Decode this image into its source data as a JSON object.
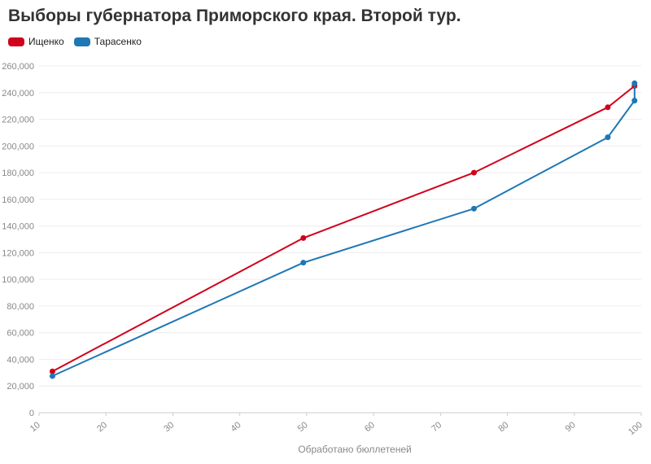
{
  "chart_data": {
    "type": "line",
    "title": "Выборы губернатора Приморского края. Второй тур.",
    "xlabel": "Обработано бюллетеней",
    "ylabel": "",
    "xlim": [
      10,
      100
    ],
    "ylim": [
      0,
      260000
    ],
    "x_ticks": [
      "10",
      "20",
      "30",
      "40",
      "50",
      "60",
      "70",
      "80",
      "90",
      "100"
    ],
    "y_ticks": [
      "0",
      "20,000",
      "40,000",
      "60,000",
      "80,000",
      "100,000",
      "120,000",
      "140,000",
      "160,000",
      "180,000",
      "200,000",
      "220,000",
      "240,000",
      "260,000"
    ],
    "grid": true,
    "legend_position": "top-left",
    "series": [
      {
        "name": "Ищенко",
        "color": "#d0021b",
        "points": [
          [
            12,
            31000
          ],
          [
            49.5,
            131000
          ],
          [
            75,
            180000
          ],
          [
            95,
            229000
          ],
          [
            99,
            245000
          ]
        ]
      },
      {
        "name": "Тарасенко",
        "color": "#1f77b4",
        "points": [
          [
            12,
            27500
          ],
          [
            49.5,
            112500
          ],
          [
            75,
            153000
          ],
          [
            95,
            206500
          ],
          [
            99,
            234000
          ],
          [
            99,
            247000
          ]
        ]
      }
    ]
  }
}
